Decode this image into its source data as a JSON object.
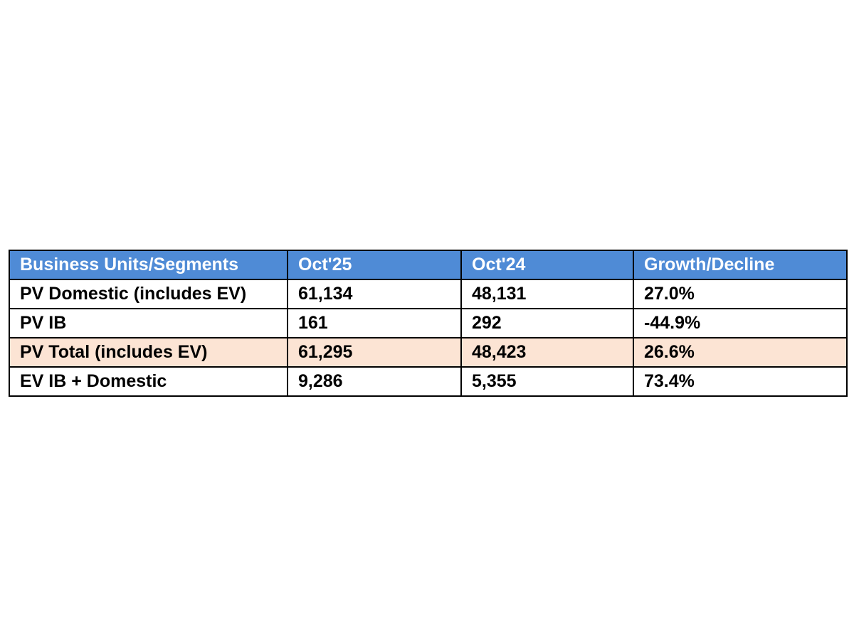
{
  "table": {
    "headers": [
      "Business Units/Segments",
      "Oct'25",
      "Oct'24",
      "Growth/Decline"
    ],
    "rows": [
      {
        "segment": "PV Domestic (includes EV)",
        "oct25": "61,134",
        "oct24": "48,131",
        "growth": "27.0%"
      },
      {
        "segment": "PV IB",
        "oct25": "161",
        "oct24": "292",
        "growth": "-44.9%"
      },
      {
        "segment": "PV Total (includes EV)",
        "oct25": "61,295",
        "oct24": "48,423",
        "growth": "26.6%"
      },
      {
        "segment": "EV IB + Domestic",
        "oct25": "9,286",
        "oct24": "5,355",
        "growth": "73.4%"
      }
    ],
    "colors": {
      "header_bg": "#4f8bd6",
      "header_text": "#ffffff",
      "highlight_row_bg": "#fce4d4"
    }
  }
}
